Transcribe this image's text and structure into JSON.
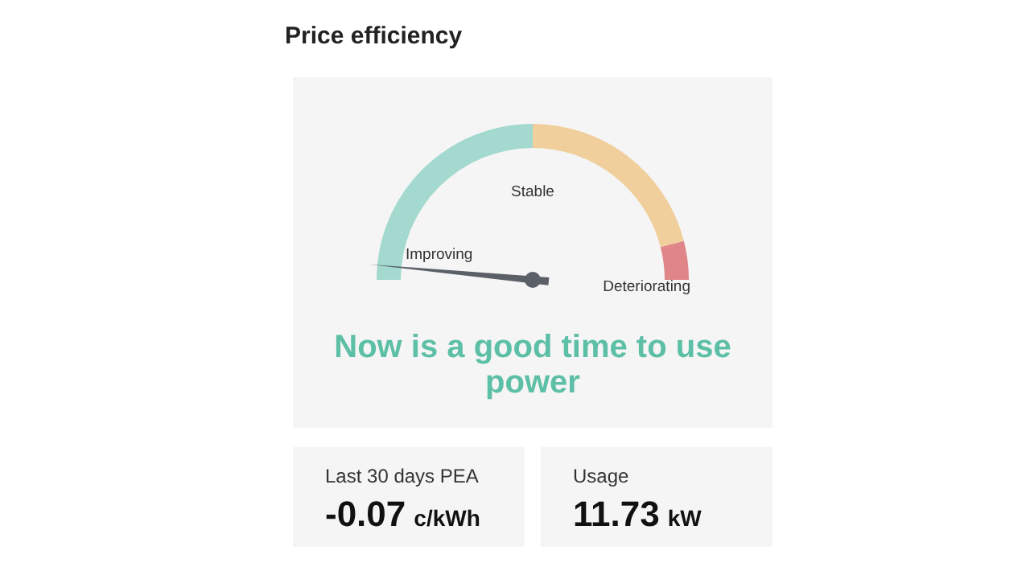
{
  "chart_data": {
    "type": "donut",
    "title": "Price efficiency",
    "subtitle": "Now is a good time to use power",
    "categories": [
      "Improving",
      "Stable",
      "Deteriorating"
    ],
    "values": [
      50,
      42,
      8
    ],
    "colors": [
      "#a3d9cf",
      "#f0cf9c",
      "#e08688"
    ],
    "needle": "Improving",
    "annotations": [
      "Last 30 days PEA",
      "-0.07 c/kWh",
      "Usage",
      "11.73 kW"
    ]
  }
}
